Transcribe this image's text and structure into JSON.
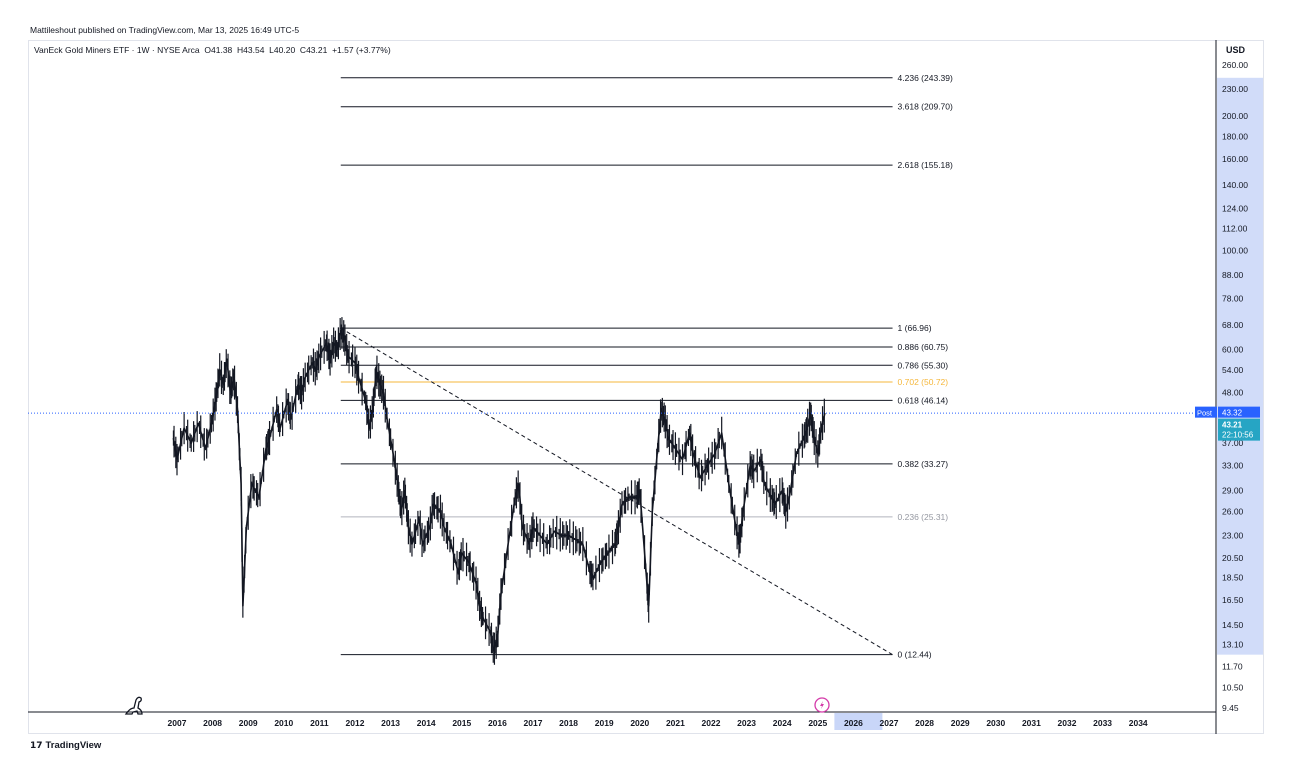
{
  "publisher_line": "Mattileshout published on TradingView.com, Mar 13, 2025 16:49 UTC-5",
  "legend": {
    "symbol": "VanEck Gold Miners ETF · 1W · NYSE Arca",
    "open_label": "O",
    "open": "41.38",
    "high_label": "H",
    "high": "43.54",
    "low_label": "L",
    "low": "40.20",
    "close_label": "C",
    "close": "43.21",
    "change": "+1.57 (+3.77%)"
  },
  "currency": "USD",
  "footer_brand": "TradingView",
  "badges": {
    "post_label": "Post",
    "post_price": "43.32",
    "last_price": "43.21",
    "countdown": "22:10:56"
  },
  "colors": {
    "candle": "#131722",
    "fib_line": "#131722",
    "fib_faded": "#b2b5be",
    "fib_orange": "#f5b73b",
    "axis_highlight": "#c9d6f8",
    "post_badge": "#2962ff",
    "last_badge": "#26a5c4",
    "dotted_price_line": "#2962ff",
    "flash_icon": "#d43aa9"
  },
  "icons": {
    "left_bottom": "dinosaur-icon",
    "timeline": "flash-icon",
    "brand": "tradingview-logo-icon"
  },
  "chart_data": {
    "type": "candlestick-line",
    "x_range": [
      2006.5,
      2035.5
    ],
    "y_scale": "log",
    "y_range": [
      9.45,
      260
    ],
    "price_ticks": [
      "260.00",
      "230.00",
      "200.00",
      "180.00",
      "160.00",
      "140.00",
      "124.00",
      "112.00",
      "100.00",
      "88.00",
      "78.00",
      "68.00",
      "60.00",
      "54.00",
      "48.00",
      "37.00",
      "33.00",
      "29.00",
      "26.00",
      "23.00",
      "20.50",
      "18.50",
      "16.50",
      "14.50",
      "13.10",
      "11.70",
      "10.50",
      "9.45"
    ],
    "year_ticks": [
      "2007",
      "2008",
      "2009",
      "2010",
      "2011",
      "2012",
      "2013",
      "2014",
      "2015",
      "2016",
      "2017",
      "2018",
      "2019",
      "2020",
      "2021",
      "2022",
      "2023",
      "2024",
      "2025",
      "2026",
      "2027",
      "2028",
      "2029",
      "2030",
      "2031",
      "2032",
      "2033",
      "2034"
    ],
    "highlighted_year": "2026",
    "fib_levels": [
      {
        "label": "4.236 (243.39)",
        "price": 243.39,
        "style": "normal"
      },
      {
        "label": "3.618 (209.70)",
        "price": 209.7,
        "style": "normal"
      },
      {
        "label": "2.618 (155.18)",
        "price": 155.18,
        "style": "normal"
      },
      {
        "label": "1 (66.96)",
        "price": 66.96,
        "style": "normal"
      },
      {
        "label": "0.886 (60.75)",
        "price": 60.75,
        "style": "normal"
      },
      {
        "label": "0.786 (55.30)",
        "price": 55.3,
        "style": "normal"
      },
      {
        "label": "0.702 (50.72)",
        "price": 50.72,
        "style": "orange"
      },
      {
        "label": "0.618 (46.14)",
        "price": 46.14,
        "style": "normal"
      },
      {
        "label": "0.382 (33.27)",
        "price": 33.27,
        "style": "normal"
      },
      {
        "label": "0.236 (25.31)",
        "price": 25.31,
        "style": "faded"
      },
      {
        "label": "0 (12.44)",
        "price": 12.44,
        "style": "normal"
      }
    ],
    "fib_x_range": [
      2011.6,
      2027.1
    ],
    "trendline": {
      "from": [
        2011.6,
        66.96
      ],
      "to": [
        2027.1,
        12.44
      ],
      "style": "dashed"
    },
    "last_price_line": 43.21,
    "price_path": [
      [
        2006.9,
        38
      ],
      [
        2007.0,
        34
      ],
      [
        2007.2,
        40
      ],
      [
        2007.4,
        37
      ],
      [
        2007.6,
        41
      ],
      [
        2007.8,
        36
      ],
      [
        2008.0,
        42
      ],
      [
        2008.1,
        47
      ],
      [
        2008.2,
        54
      ],
      [
        2008.3,
        50
      ],
      [
        2008.4,
        57
      ],
      [
        2008.5,
        48
      ],
      [
        2008.6,
        52
      ],
      [
        2008.7,
        44
      ],
      [
        2008.8,
        30
      ],
      [
        2008.85,
        16
      ],
      [
        2008.95,
        24
      ],
      [
        2009.1,
        30
      ],
      [
        2009.3,
        28
      ],
      [
        2009.5,
        36
      ],
      [
        2009.6,
        38
      ],
      [
        2009.8,
        44
      ],
      [
        2009.9,
        40
      ],
      [
        2010.1,
        46
      ],
      [
        2010.2,
        42
      ],
      [
        2010.4,
        50
      ],
      [
        2010.5,
        48
      ],
      [
        2010.6,
        52
      ],
      [
        2010.8,
        56
      ],
      [
        2010.9,
        54
      ],
      [
        2011.0,
        58
      ],
      [
        2011.2,
        62
      ],
      [
        2011.3,
        57
      ],
      [
        2011.4,
        62
      ],
      [
        2011.5,
        60
      ],
      [
        2011.6,
        66
      ],
      [
        2011.7,
        64
      ],
      [
        2011.8,
        58
      ],
      [
        2012.0,
        56
      ],
      [
        2012.1,
        52
      ],
      [
        2012.3,
        46
      ],
      [
        2012.4,
        40
      ],
      [
        2012.5,
        44
      ],
      [
        2012.6,
        54
      ],
      [
        2012.7,
        50
      ],
      [
        2012.8,
        48
      ],
      [
        2012.9,
        42
      ],
      [
        2013.1,
        34
      ],
      [
        2013.2,
        30
      ],
      [
        2013.3,
        26
      ],
      [
        2013.4,
        29
      ],
      [
        2013.5,
        24
      ],
      [
        2013.6,
        22
      ],
      [
        2013.8,
        25
      ],
      [
        2013.9,
        22
      ],
      [
        2014.1,
        24
      ],
      [
        2014.2,
        27
      ],
      [
        2014.4,
        26
      ],
      [
        2014.5,
        24
      ],
      [
        2014.7,
        22
      ],
      [
        2014.9,
        19
      ],
      [
        2015.0,
        21
      ],
      [
        2015.2,
        20
      ],
      [
        2015.4,
        18
      ],
      [
        2015.5,
        16
      ],
      [
        2015.6,
        15
      ],
      [
        2015.8,
        14
      ],
      [
        2015.9,
        12.7
      ],
      [
        2016.0,
        13.5
      ],
      [
        2016.1,
        17
      ],
      [
        2016.3,
        22
      ],
      [
        2016.5,
        28
      ],
      [
        2016.6,
        30
      ],
      [
        2016.7,
        24
      ],
      [
        2016.9,
        22
      ],
      [
        2017.0,
        24
      ],
      [
        2017.2,
        23
      ],
      [
        2017.4,
        22
      ],
      [
        2017.6,
        23.5
      ],
      [
        2017.8,
        23
      ],
      [
        2018.0,
        23
      ],
      [
        2018.2,
        22.5
      ],
      [
        2018.4,
        22
      ],
      [
        2018.6,
        19
      ],
      [
        2018.7,
        18.5
      ],
      [
        2018.9,
        20
      ],
      [
        2019.1,
        21
      ],
      [
        2019.3,
        22
      ],
      [
        2019.4,
        24
      ],
      [
        2019.5,
        27
      ],
      [
        2019.7,
        28
      ],
      [
        2019.9,
        28
      ],
      [
        2020.0,
        29
      ],
      [
        2020.2,
        18
      ],
      [
        2020.25,
        16
      ],
      [
        2020.35,
        26
      ],
      [
        2020.5,
        36
      ],
      [
        2020.6,
        44
      ],
      [
        2020.7,
        42
      ],
      [
        2020.8,
        38
      ],
      [
        2021.0,
        36
      ],
      [
        2021.2,
        34
      ],
      [
        2021.4,
        39
      ],
      [
        2021.5,
        35
      ],
      [
        2021.7,
        31
      ],
      [
        2021.9,
        33
      ],
      [
        2022.1,
        35
      ],
      [
        2022.3,
        39
      ],
      [
        2022.5,
        30
      ],
      [
        2022.7,
        24
      ],
      [
        2022.8,
        22
      ],
      [
        2022.9,
        26
      ],
      [
        2023.1,
        33
      ],
      [
        2023.2,
        32
      ],
      [
        2023.4,
        34
      ],
      [
        2023.5,
        30
      ],
      [
        2023.7,
        28
      ],
      [
        2023.8,
        27
      ],
      [
        2024.0,
        29
      ],
      [
        2024.1,
        26
      ],
      [
        2024.2,
        28
      ],
      [
        2024.4,
        35
      ],
      [
        2024.6,
        38
      ],
      [
        2024.7,
        40
      ],
      [
        2024.8,
        43
      ],
      [
        2024.9,
        38
      ],
      [
        2025.0,
        35
      ],
      [
        2025.1,
        40
      ],
      [
        2025.2,
        43.21
      ]
    ]
  }
}
